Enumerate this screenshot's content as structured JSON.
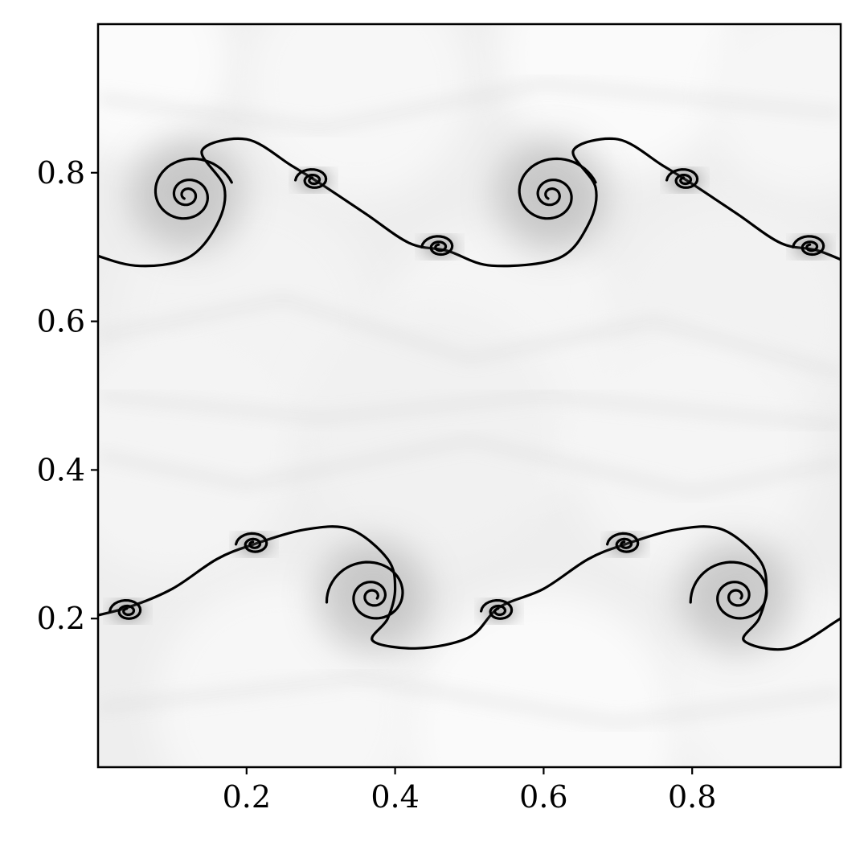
{
  "chart_data": {
    "type": "heatmap",
    "title": "",
    "xlabel": "",
    "ylabel": "",
    "xlim": [
      0,
      1
    ],
    "ylim": [
      0,
      1
    ],
    "colormap": "grayscale",
    "grid": false,
    "legend": "none",
    "x_ticks": [
      {
        "value": 0.2,
        "label": "0.2"
      },
      {
        "value": 0.4,
        "label": "0.4"
      },
      {
        "value": 0.6,
        "label": "0.6"
      },
      {
        "value": 0.8,
        "label": "0.8"
      }
    ],
    "y_ticks": [
      {
        "value": 0.2,
        "label": "0.2"
      },
      {
        "value": 0.4,
        "label": "0.4"
      },
      {
        "value": 0.6,
        "label": "0.6"
      },
      {
        "value": 0.8,
        "label": "0.8"
      }
    ],
    "features": [
      {
        "kind": "vortex-roll-up",
        "x": 0.12,
        "y": 0.77
      },
      {
        "kind": "vortex-roll-up",
        "x": 0.61,
        "y": 0.77
      },
      {
        "kind": "vortex-roll-up",
        "x": 0.37,
        "y": 0.23
      },
      {
        "kind": "vortex-roll-up",
        "x": 0.86,
        "y": 0.23
      },
      {
        "kind": "secondary-vortex",
        "x": 0.29,
        "y": 0.79
      },
      {
        "kind": "secondary-vortex",
        "x": 0.46,
        "y": 0.7
      },
      {
        "kind": "secondary-vortex",
        "x": 0.79,
        "y": 0.79
      },
      {
        "kind": "secondary-vortex",
        "x": 0.96,
        "y": 0.7
      },
      {
        "kind": "secondary-vortex",
        "x": 0.04,
        "y": 0.21
      },
      {
        "kind": "secondary-vortex",
        "x": 0.21,
        "y": 0.3
      },
      {
        "kind": "secondary-vortex",
        "x": 0.54,
        "y": 0.21
      },
      {
        "kind": "secondary-vortex",
        "x": 0.71,
        "y": 0.3
      }
    ]
  }
}
